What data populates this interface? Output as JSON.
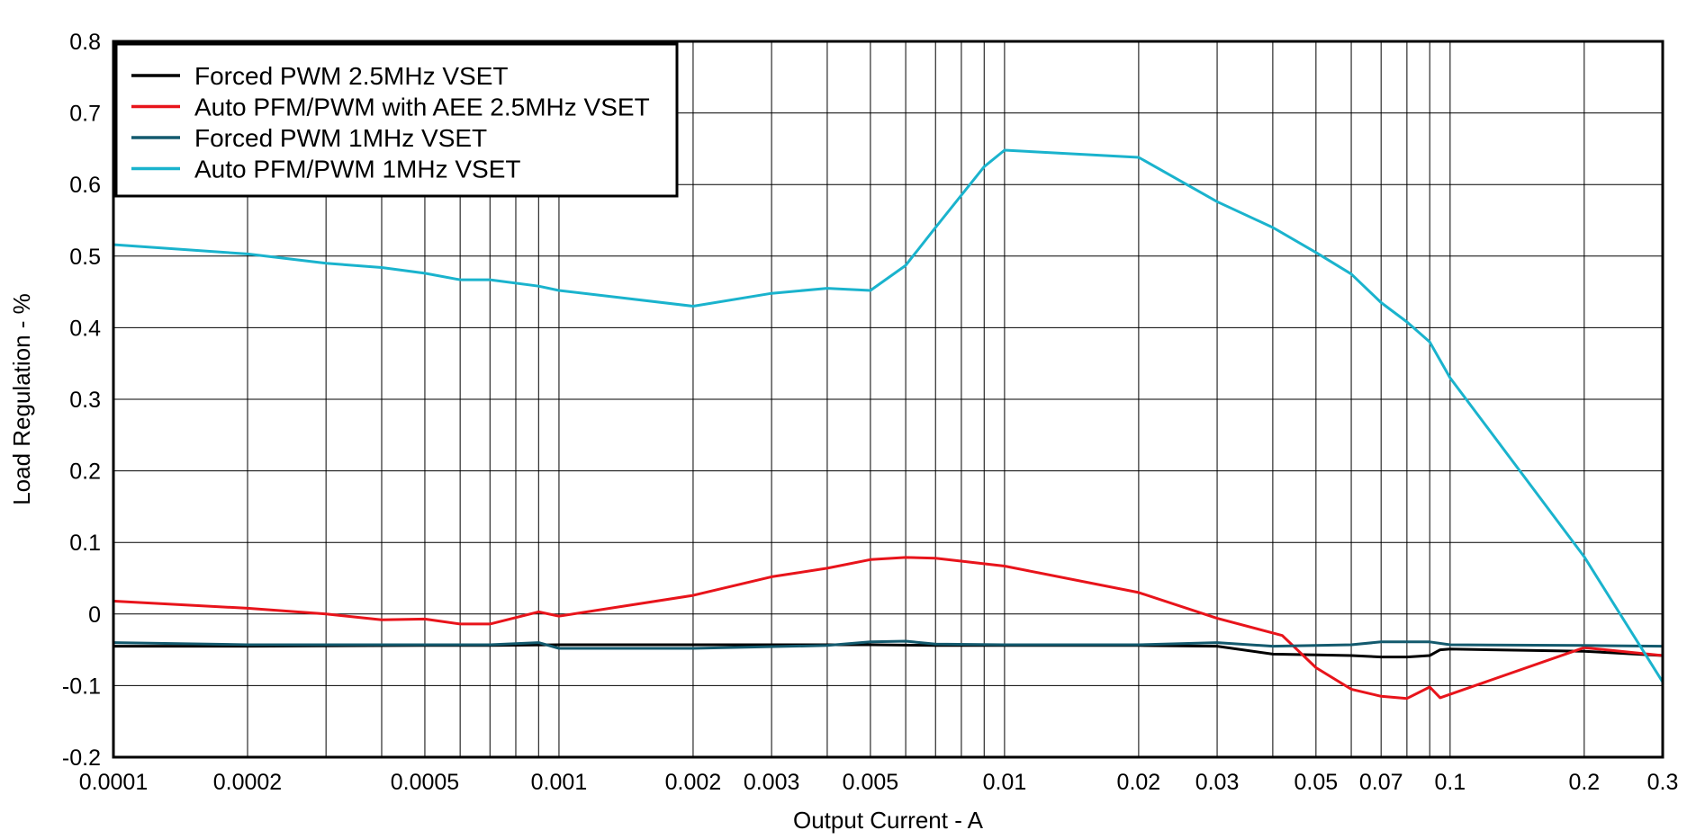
{
  "chart_data": {
    "type": "line",
    "title": "",
    "xlabel": "Output Current - A",
    "ylabel": "Load Regulation - %",
    "xscale": "log",
    "xlim": [
      0.0001,
      0.3
    ],
    "ylim": [
      -0.2,
      0.8
    ],
    "grid": true,
    "legend_position": "top-left",
    "x_ticks": [
      {
        "value": 0.0001,
        "label": "0.0001"
      },
      {
        "value": 0.0002,
        "label": "0.0002"
      },
      {
        "value": 0.0005,
        "label": "0.0005"
      },
      {
        "value": 0.001,
        "label": "0.001"
      },
      {
        "value": 0.002,
        "label": "0.002"
      },
      {
        "value": 0.003,
        "label": "0.003"
      },
      {
        "value": 0.005,
        "label": "0.005"
      },
      {
        "value": 0.01,
        "label": "0.01"
      },
      {
        "value": 0.02,
        "label": "0.02"
      },
      {
        "value": 0.03,
        "label": "0.03"
      },
      {
        "value": 0.05,
        "label": "0.05"
      },
      {
        "value": 0.07,
        "label": "0.07"
      },
      {
        "value": 0.1,
        "label": "0.1"
      },
      {
        "value": 0.2,
        "label": "0.2"
      },
      {
        "value": 0.3,
        "label": "0.3"
      }
    ],
    "y_ticks": [
      {
        "value": 0.8,
        "label": "0.8"
      },
      {
        "value": 0.7,
        "label": "0.7"
      },
      {
        "value": 0.6,
        "label": "0.6"
      },
      {
        "value": 0.5,
        "label": "0.5"
      },
      {
        "value": 0.4,
        "label": "0.4"
      },
      {
        "value": 0.3,
        "label": "0.3"
      },
      {
        "value": 0.2,
        "label": "0.2"
      },
      {
        "value": 0.1,
        "label": "0.1"
      },
      {
        "value": 0,
        "label": "0"
      },
      {
        "value": -0.1,
        "label": "-0.1"
      },
      {
        "value": -0.2,
        "label": "-0.2"
      }
    ],
    "series": [
      {
        "name": "Forced PWM 2.5MHz VSET",
        "color": "#000000",
        "points": [
          [
            0.0001,
            -0.045
          ],
          [
            0.0002,
            -0.045
          ],
          [
            0.0005,
            -0.044
          ],
          [
            0.0007,
            -0.044
          ],
          [
            0.001,
            -0.043
          ],
          [
            0.002,
            -0.043
          ],
          [
            0.005,
            -0.043
          ],
          [
            0.007,
            -0.044
          ],
          [
            0.01,
            -0.044
          ],
          [
            0.02,
            -0.044
          ],
          [
            0.03,
            -0.045
          ],
          [
            0.04,
            -0.056
          ],
          [
            0.05,
            -0.057
          ],
          [
            0.06,
            -0.058
          ],
          [
            0.07,
            -0.06
          ],
          [
            0.08,
            -0.06
          ],
          [
            0.09,
            -0.058
          ],
          [
            0.095,
            -0.05
          ],
          [
            0.1,
            -0.049
          ],
          [
            0.2,
            -0.052
          ],
          [
            0.3,
            -0.058
          ]
        ]
      },
      {
        "name": "Auto PFM/PWM with AEE 2.5MHz VSET",
        "color": "#e8141b",
        "points": [
          [
            0.0001,
            0.018
          ],
          [
            0.0002,
            0.008
          ],
          [
            0.0003,
            0.0
          ],
          [
            0.0004,
            -0.008
          ],
          [
            0.0005,
            -0.007
          ],
          [
            0.0006,
            -0.014
          ],
          [
            0.0007,
            -0.014
          ],
          [
            0.0009,
            0.003
          ],
          [
            0.001,
            -0.003
          ],
          [
            0.002,
            0.026
          ],
          [
            0.003,
            0.052
          ],
          [
            0.004,
            0.064
          ],
          [
            0.005,
            0.076
          ],
          [
            0.006,
            0.079
          ],
          [
            0.007,
            0.078
          ],
          [
            0.01,
            0.067
          ],
          [
            0.02,
            0.03
          ],
          [
            0.03,
            -0.006
          ],
          [
            0.042,
            -0.03
          ],
          [
            0.05,
            -0.075
          ],
          [
            0.06,
            -0.105
          ],
          [
            0.07,
            -0.115
          ],
          [
            0.08,
            -0.118
          ],
          [
            0.09,
            -0.102
          ],
          [
            0.095,
            -0.117
          ],
          [
            0.2,
            -0.047
          ],
          [
            0.3,
            -0.058
          ]
        ]
      },
      {
        "name": "Forced PWM 1MHz VSET",
        "color": "#135a6e",
        "points": [
          [
            0.0001,
            -0.04
          ],
          [
            0.0002,
            -0.043
          ],
          [
            0.0005,
            -0.043
          ],
          [
            0.0007,
            -0.043
          ],
          [
            0.0009,
            -0.04
          ],
          [
            0.001,
            -0.048
          ],
          [
            0.002,
            -0.048
          ],
          [
            0.004,
            -0.044
          ],
          [
            0.005,
            -0.039
          ],
          [
            0.006,
            -0.038
          ],
          [
            0.007,
            -0.042
          ],
          [
            0.01,
            -0.043
          ],
          [
            0.02,
            -0.043
          ],
          [
            0.03,
            -0.04
          ],
          [
            0.04,
            -0.045
          ],
          [
            0.05,
            -0.044
          ],
          [
            0.06,
            -0.043
          ],
          [
            0.07,
            -0.039
          ],
          [
            0.09,
            -0.039
          ],
          [
            0.1,
            -0.043
          ],
          [
            0.2,
            -0.044
          ],
          [
            0.3,
            -0.045
          ]
        ]
      },
      {
        "name": "Auto PFM/PWM 1MHz VSET",
        "color": "#1ab3cd",
        "points": [
          [
            0.0001,
            0.516
          ],
          [
            0.0002,
            0.503
          ],
          [
            0.0003,
            0.49
          ],
          [
            0.0004,
            0.484
          ],
          [
            0.0005,
            0.476
          ],
          [
            0.0006,
            0.467
          ],
          [
            0.0007,
            0.467
          ],
          [
            0.0009,
            0.458
          ],
          [
            0.001,
            0.452
          ],
          [
            0.002,
            0.43
          ],
          [
            0.003,
            0.448
          ],
          [
            0.004,
            0.455
          ],
          [
            0.005,
            0.452
          ],
          [
            0.006,
            0.487
          ],
          [
            0.007,
            0.54
          ],
          [
            0.009,
            0.625
          ],
          [
            0.01,
            0.648
          ],
          [
            0.02,
            0.638
          ],
          [
            0.03,
            0.576
          ],
          [
            0.04,
            0.54
          ],
          [
            0.05,
            0.505
          ],
          [
            0.06,
            0.475
          ],
          [
            0.07,
            0.435
          ],
          [
            0.08,
            0.408
          ],
          [
            0.09,
            0.38
          ],
          [
            0.1,
            0.33
          ],
          [
            0.2,
            0.08
          ],
          [
            0.3,
            -0.095
          ]
        ]
      }
    ]
  }
}
